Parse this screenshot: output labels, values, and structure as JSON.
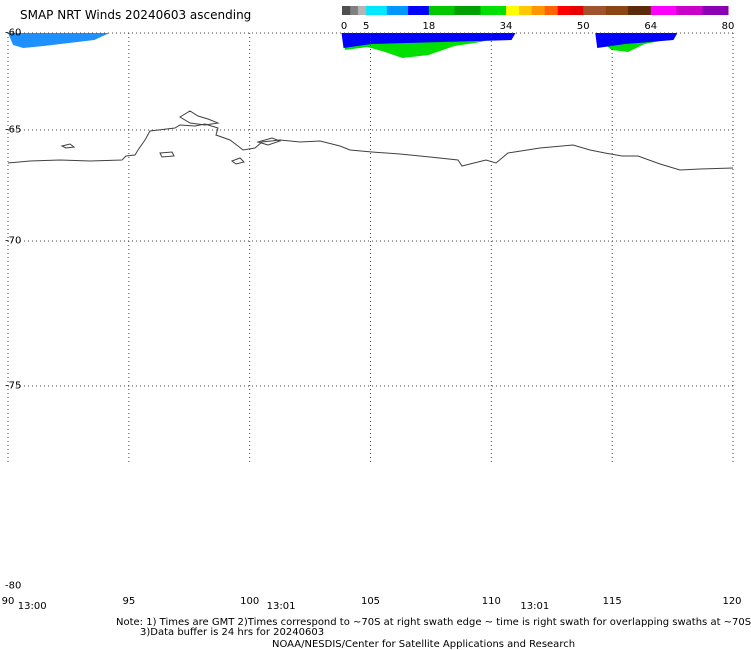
{
  "title": "SMAP NRT Winds 20240603 ascending",
  "colorbar": {
    "labels": [
      {
        "text": "0",
        "value": 0
      },
      {
        "text": "5",
        "value": 5
      },
      {
        "text": "18",
        "value": 18
      },
      {
        "text": "34",
        "value": 34
      },
      {
        "text": "50",
        "value": 50
      },
      {
        "text": "64",
        "value": 64
      },
      {
        "text": "80",
        "value": 80
      }
    ],
    "segments": [
      {
        "from": 0,
        "to": 1.7,
        "color": "#505050"
      },
      {
        "from": 1.7,
        "to": 3.3,
        "color": "#808080"
      },
      {
        "from": 3.3,
        "to": 5,
        "color": "#b4b4b4"
      },
      {
        "from": 5,
        "to": 9.3,
        "color": "#00e8ff"
      },
      {
        "from": 9.3,
        "to": 13.7,
        "color": "#0096ff"
      },
      {
        "from": 13.7,
        "to": 18,
        "color": "#0000ff"
      },
      {
        "from": 18,
        "to": 23.3,
        "color": "#00c800"
      },
      {
        "from": 23.3,
        "to": 28.7,
        "color": "#00a000"
      },
      {
        "from": 28.7,
        "to": 34,
        "color": "#00e000"
      },
      {
        "from": 34,
        "to": 36.7,
        "color": "#ffff00"
      },
      {
        "from": 36.7,
        "to": 39.3,
        "color": "#ffc800"
      },
      {
        "from": 39.3,
        "to": 42,
        "color": "#ff9600"
      },
      {
        "from": 42,
        "to": 44.7,
        "color": "#ff6400"
      },
      {
        "from": 44.7,
        "to": 47.3,
        "color": "#ff0000"
      },
      {
        "from": 47.3,
        "to": 50,
        "color": "#e60000"
      },
      {
        "from": 50,
        "to": 54.7,
        "color": "#a0522d"
      },
      {
        "from": 54.7,
        "to": 59.3,
        "color": "#8b4513"
      },
      {
        "from": 59.3,
        "to": 64,
        "color": "#5a2a0a"
      },
      {
        "from": 64,
        "to": 69.3,
        "color": "#ff00ff"
      },
      {
        "from": 69.3,
        "to": 74.7,
        "color": "#c800c8"
      },
      {
        "from": 74.7,
        "to": 80,
        "color": "#8c00b4"
      }
    ]
  },
  "map": {
    "lon_range": [
      90,
      120
    ],
    "lat_range": [
      -80,
      -60
    ],
    "lon_ticks": [
      {
        "text": "90",
        "value": 90
      },
      {
        "text": "95",
        "value": 95
      },
      {
        "text": "100",
        "value": 100
      },
      {
        "text": "105",
        "value": 105
      },
      {
        "text": "110",
        "value": 110
      },
      {
        "text": "115",
        "value": 115
      },
      {
        "text": "120",
        "value": 120
      }
    ],
    "lat_ticks": [
      {
        "text": "-60",
        "value": -60
      },
      {
        "text": "-65",
        "value": -65
      },
      {
        "text": "-70",
        "value": -70
      },
      {
        "text": "-75",
        "value": -75
      },
      {
        "text": "-80",
        "value": -80
      }
    ],
    "gridlines": "dotted",
    "swath_times": [
      {
        "text": "13:00",
        "lon": 91
      },
      {
        "text": "13:01",
        "lon": 101.3
      },
      {
        "text": "13:01",
        "lon": 111.8
      }
    ],
    "wind_swaths": [
      {
        "lon_start": 90,
        "lon_end": 94.2,
        "color": "#1e90ff"
      },
      {
        "lon_start": 103.8,
        "lon_end": 111,
        "color": "#00e000"
      },
      {
        "lon_start": 114.3,
        "lon_end": 117.7,
        "color": "#00e000"
      }
    ],
    "coastline_color": "#404040"
  },
  "notes": {
    "line1": "Note: 1) Times are GMT 2)Times correspond to ~70S at right swath edge ~ time is right swath for overlapping swaths at ~70S",
    "line2": "3)Data buffer is 24 hrs for 20240603",
    "line3": "NOAA/NESDIS/Center for Satellite Applications and Research"
  }
}
